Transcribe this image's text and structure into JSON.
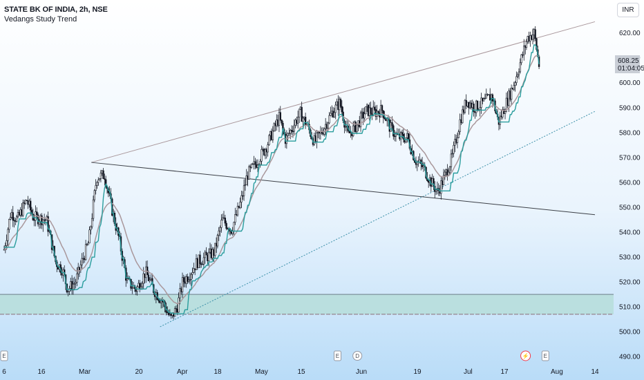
{
  "header": {
    "symbol_title": "STATE BK OF INDIA, 2h, NSE",
    "indicator_name": "Vedangs Study Trend"
  },
  "currency_button": {
    "label": "INR"
  },
  "price_badge": {
    "price": "608.25",
    "countdown": "01:04:05",
    "color": "#c9ced6"
  },
  "events": [
    {
      "x_label": "6",
      "offset": 0.0,
      "letter": "E",
      "kind": "earnings"
    },
    {
      "x_label": "Jun",
      "offset": -1.7,
      "letter": "E",
      "kind": "earnings"
    },
    {
      "x_label": "Jun",
      "offset": -0.2,
      "letter": "D",
      "kind": "dividend"
    },
    {
      "x_label": "17",
      "offset": 1.6,
      "letter": "⚡",
      "kind": "split"
    },
    {
      "x_label": "17",
      "offset": 3.1,
      "letter": "E",
      "kind": "earnings"
    }
  ],
  "colors": {
    "trend_line": "#a9979b",
    "support_line": "#2a9d9d",
    "upper_channel": "#a9979b",
    "lower_channel": "#3a8fa8",
    "mid_line": "#3b3f46",
    "zone_fill": "#b3dcd6",
    "zone_line": "#5c6e78",
    "candle": "#131722"
  },
  "chart_data": {
    "type": "candlestick",
    "title": "STATE BK OF INDIA, 2h, NSE",
    "indicator": "Vedangs Study Trend",
    "x_ticks": [
      "6",
      "16",
      "Mar",
      "20",
      "Apr",
      "18",
      "May",
      "15",
      "Jun",
      "19",
      "Jul",
      "17",
      "Aug",
      "14"
    ],
    "y_ticks": [
      490,
      500,
      510,
      520,
      530,
      540,
      550,
      560,
      570,
      580,
      590,
      600,
      610,
      620
    ],
    "y_tick_labels": [
      "490.00",
      "500.00",
      "510.00",
      "520.00",
      "530.00",
      "540.00",
      "550.00",
      "560.00",
      "570.00",
      "580.00",
      "590.00",
      "600.00",
      "610.00",
      "620.00"
    ],
    "ylim": [
      487,
      631
    ],
    "last_price": 608.25,
    "close_path": [
      {
        "t": 0,
        "v": 533
      },
      {
        "t": 0.5,
        "v": 548
      },
      {
        "t": 1.0,
        "v": 545
      },
      {
        "t": 1.7,
        "v": 553
      },
      {
        "t": 2.2,
        "v": 546
      },
      {
        "t": 3.2,
        "v": 545
      },
      {
        "t": 3.9,
        "v": 528
      },
      {
        "t": 4.4,
        "v": 525
      },
      {
        "t": 4.8,
        "v": 517
      },
      {
        "t": 5.4,
        "v": 520
      },
      {
        "t": 6.0,
        "v": 530
      },
      {
        "t": 6.4,
        "v": 536
      },
      {
        "t": 7.0,
        "v": 562
      },
      {
        "t": 7.6,
        "v": 563
      },
      {
        "t": 8.2,
        "v": 548
      },
      {
        "t": 8.7,
        "v": 537
      },
      {
        "t": 9.3,
        "v": 520
      },
      {
        "t": 10.0,
        "v": 517
      },
      {
        "t": 10.7,
        "v": 524
      },
      {
        "t": 11.3,
        "v": 517
      },
      {
        "t": 12.0,
        "v": 512
      },
      {
        "t": 12.6,
        "v": 505
      },
      {
        "t": 13.1,
        "v": 510
      },
      {
        "t": 13.5,
        "v": 520
      },
      {
        "t": 14.0,
        "v": 523
      },
      {
        "t": 14.6,
        "v": 528
      },
      {
        "t": 15.3,
        "v": 530
      },
      {
        "t": 15.9,
        "v": 532
      },
      {
        "t": 16.5,
        "v": 545
      },
      {
        "t": 17.2,
        "v": 541
      },
      {
        "t": 17.9,
        "v": 552
      },
      {
        "t": 18.4,
        "v": 563
      },
      {
        "t": 19.1,
        "v": 568
      },
      {
        "t": 19.8,
        "v": 574
      },
      {
        "t": 20.3,
        "v": 580
      },
      {
        "t": 20.8,
        "v": 586
      },
      {
        "t": 21.3,
        "v": 577
      },
      {
        "t": 21.8,
        "v": 582
      },
      {
        "t": 22.4,
        "v": 588
      },
      {
        "t": 22.9,
        "v": 583
      },
      {
        "t": 23.5,
        "v": 576
      },
      {
        "t": 24.1,
        "v": 581
      },
      {
        "t": 24.8,
        "v": 588
      },
      {
        "t": 25.4,
        "v": 592
      },
      {
        "t": 26.0,
        "v": 579
      },
      {
        "t": 26.7,
        "v": 583
      },
      {
        "t": 27.4,
        "v": 589
      },
      {
        "t": 28.0,
        "v": 588
      },
      {
        "t": 28.6,
        "v": 589
      },
      {
        "t": 29.2,
        "v": 582
      },
      {
        "t": 29.8,
        "v": 578
      },
      {
        "t": 30.5,
        "v": 578
      },
      {
        "t": 31.1,
        "v": 569
      },
      {
        "t": 31.7,
        "v": 566
      },
      {
        "t": 32.2,
        "v": 561
      },
      {
        "t": 32.8,
        "v": 556
      },
      {
        "t": 33.3,
        "v": 562
      },
      {
        "t": 33.9,
        "v": 570
      },
      {
        "t": 34.5,
        "v": 585
      },
      {
        "t": 35.0,
        "v": 593
      },
      {
        "t": 35.6,
        "v": 590
      },
      {
        "t": 36.3,
        "v": 592
      },
      {
        "t": 36.9,
        "v": 595
      },
      {
        "t": 37.4,
        "v": 584
      },
      {
        "t": 38.0,
        "v": 592
      },
      {
        "t": 38.6,
        "v": 600
      },
      {
        "t": 39.1,
        "v": 609
      },
      {
        "t": 39.6,
        "v": 618
      },
      {
        "t": 40.1,
        "v": 620
      },
      {
        "t": 40.5,
        "v": 606
      }
    ],
    "zone": {
      "from": 507,
      "to": 515
    },
    "lines": [
      {
        "name": "upper-channel",
        "start": {
          "t": 6.6,
          "v": 568
        },
        "end": {
          "t": 44.7,
          "v": 624.5
        }
      },
      {
        "name": "lower-channel",
        "start": {
          "t": 11.8,
          "v": 502
        },
        "end": {
          "t": 44.7,
          "v": 588.5
        }
      },
      {
        "name": "mid-line",
        "start": {
          "t": 6.6,
          "v": 568
        },
        "end": {
          "t": 44.7,
          "v": 547
        }
      }
    ],
    "legend": "top-left",
    "grid": false
  }
}
